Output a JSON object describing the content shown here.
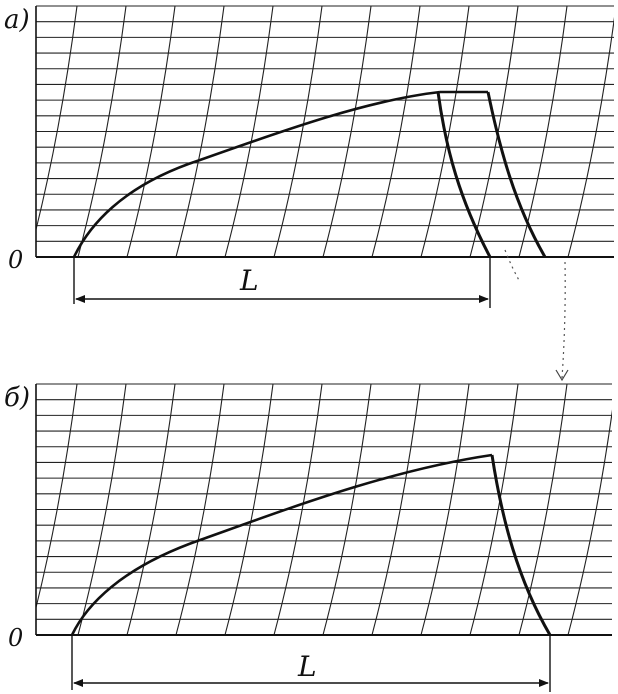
{
  "panels": [
    {
      "id": "a",
      "label": "а)",
      "origin_label": "0",
      "dimension_label": "L"
    },
    {
      "id": "b",
      "label": "б)",
      "origin_label": "0",
      "dimension_label": "L"
    }
  ],
  "colors": {
    "ink": "#111111",
    "background": "#ffffff"
  }
}
